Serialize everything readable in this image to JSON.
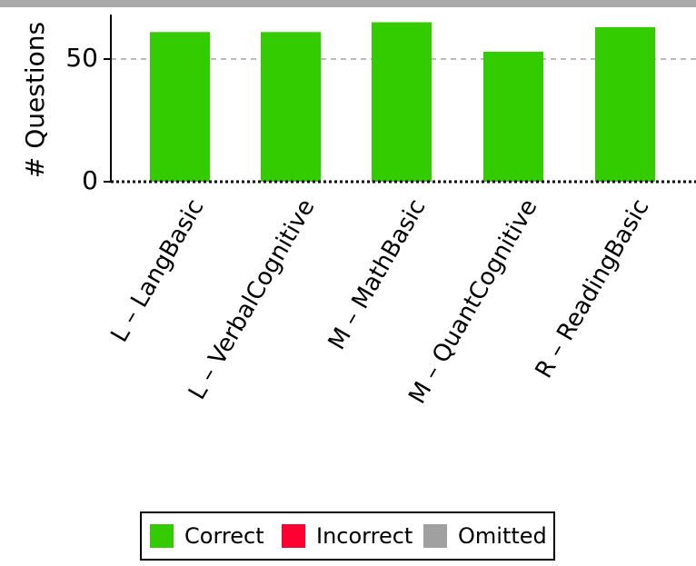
{
  "chart_data": {
    "type": "bar",
    "title": "",
    "xlabel": "",
    "ylabel": "# Questions",
    "categories": [
      "L – LangBasic",
      "L – VerbalCognitive",
      "M – MathBasic",
      "M – QuantCognitive",
      "R – ReadingBasic"
    ],
    "series": [
      {
        "name": "Correct",
        "color": "#33cc00",
        "values": [
          61,
          61,
          65,
          53,
          63
        ]
      },
      {
        "name": "Incorrect",
        "color": "#ff0033",
        "values": [
          0,
          0,
          0,
          0,
          0
        ]
      },
      {
        "name": "Omitted",
        "color": "#a0a0a0",
        "values": [
          0,
          0,
          0,
          0,
          0
        ]
      }
    ],
    "yticks": [
      0,
      50
    ],
    "ylim": [
      0,
      68
    ],
    "grid": "dashed horizontal at 50",
    "legend": "bottom-center"
  }
}
